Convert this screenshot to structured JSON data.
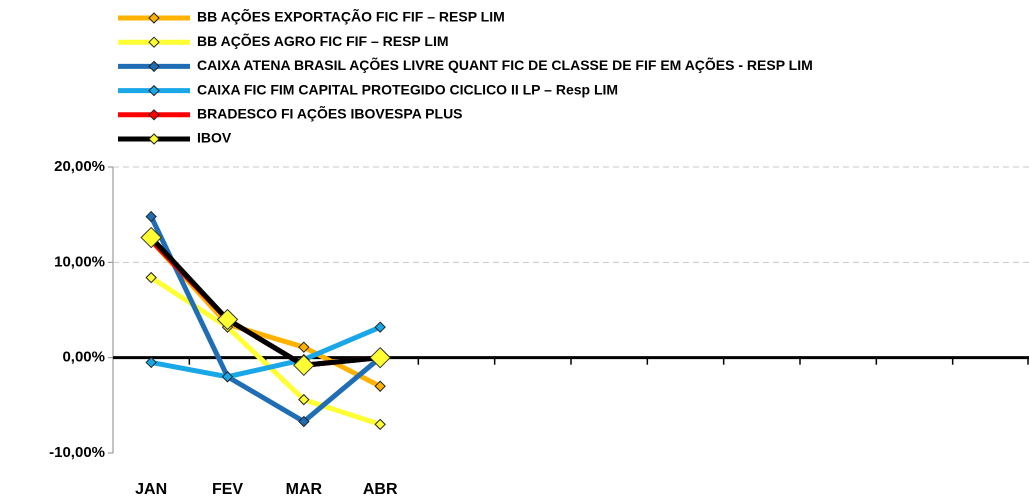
{
  "chart_data": {
    "type": "line",
    "categories": [
      "JAN",
      "FEV",
      "MAR",
      "ABR",
      null,
      null,
      null,
      null,
      null,
      null,
      null,
      null
    ],
    "series": [
      {
        "name": "BB AÇÕES EXPORTAÇÃO FIC FIF – RESP LIM",
        "color": "#FFB300",
        "marker_color": "#FFB300",
        "values": [
          12.3,
          3.5,
          1.1,
          -3.0,
          null,
          null,
          null,
          null,
          null,
          null,
          null,
          null
        ]
      },
      {
        "name": "BB AÇÕES AGRO FIC FIF – RESP LIM",
        "color": "#FFFF33",
        "marker_color": "#FFFF33",
        "values": [
          8.4,
          3.2,
          -4.4,
          -7.0,
          null,
          null,
          null,
          null,
          null,
          null,
          null,
          null
        ]
      },
      {
        "name": "CAIXA ATENA BRASIL AÇÕES LIVRE QUANT FIC DE CLASSE DE FIF EM AÇÕES - RESP LIM",
        "color": "#1F6EB5",
        "marker_color": "#1F6EB5",
        "values": [
          14.8,
          -2.0,
          -6.7,
          0.0,
          null,
          null,
          null,
          null,
          null,
          null,
          null,
          null
        ]
      },
      {
        "name": "CAIXA FIC FIM CAPITAL PROTEGIDO CICLICO II LP – Resp LIM",
        "color": "#1AA7E8",
        "marker_color": "#1AA7E8",
        "values": [
          -0.5,
          -2.0,
          -0.2,
          3.2,
          null,
          null,
          null,
          null,
          null,
          null,
          null,
          null
        ]
      },
      {
        "name": "BRADESCO FI AÇÕES IBOVESPA PLUS",
        "color": "#FF0000",
        "marker_color": "#FF0000",
        "values": [
          12.3,
          4.0,
          -0.8,
          0.0,
          null,
          null,
          null,
          null,
          null,
          null,
          null,
          null
        ]
      },
      {
        "name": "IBOV",
        "color": "#000000",
        "marker_color": "#FFFF33",
        "values": [
          12.6,
          4.0,
          -0.8,
          0.0,
          null,
          null,
          null,
          null,
          null,
          null,
          null,
          null
        ]
      }
    ],
    "ylim": [
      -10,
      20
    ],
    "yticks": [
      {
        "value": -10,
        "label": "-10,00%"
      },
      {
        "value": 0,
        "label": "0,00%"
      },
      {
        "value": 10,
        "label": "10,00%"
      },
      {
        "value": 20,
        "label": "20,00%"
      }
    ],
    "grid": true
  }
}
